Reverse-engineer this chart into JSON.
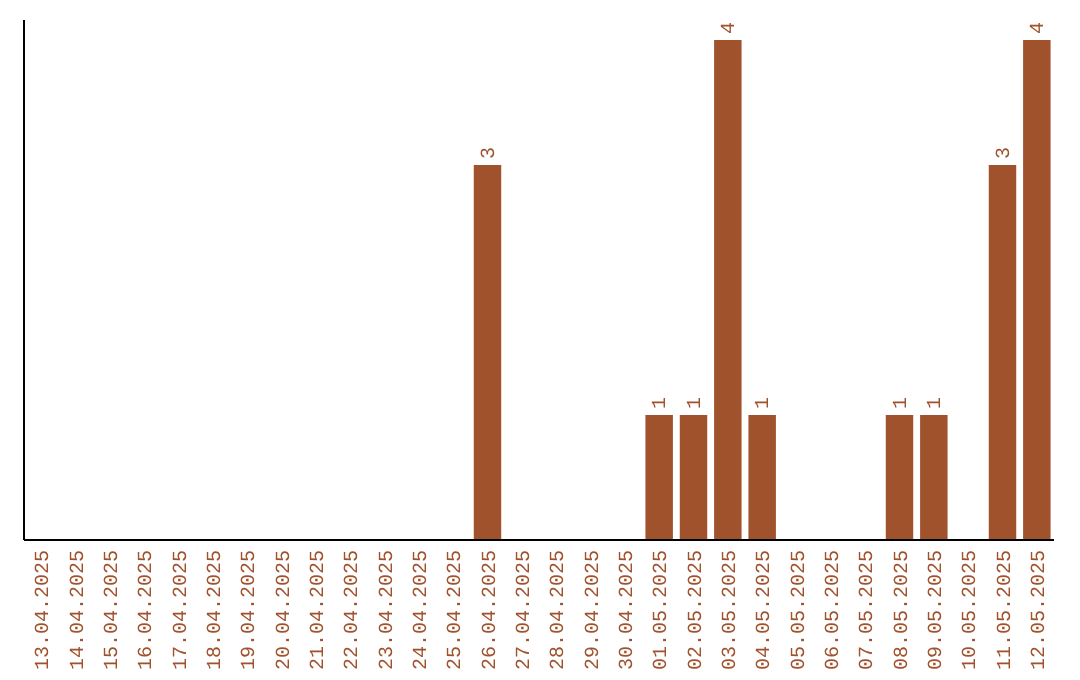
{
  "chart_data": {
    "type": "bar",
    "categories": [
      "13.04.2025",
      "14.04.2025",
      "15.04.2025",
      "16.04.2025",
      "17.04.2025",
      "18.04.2025",
      "19.04.2025",
      "20.04.2025",
      "21.04.2025",
      "22.04.2025",
      "23.04.2025",
      "24.04.2025",
      "25.04.2025",
      "26.04.2025",
      "27.04.2025",
      "28.04.2025",
      "29.04.2025",
      "30.04.2025",
      "01.05.2025",
      "02.05.2025",
      "03.05.2025",
      "04.05.2025",
      "05.05.2025",
      "06.05.2025",
      "07.05.2025",
      "08.05.2025",
      "09.05.2025",
      "10.05.2025",
      "11.05.2025",
      "12.05.2025"
    ],
    "values": [
      null,
      null,
      null,
      null,
      null,
      null,
      null,
      null,
      null,
      null,
      null,
      null,
      null,
      3,
      null,
      null,
      null,
      null,
      1,
      1,
      4,
      1,
      null,
      null,
      null,
      1,
      1,
      null,
      3,
      4
    ],
    "value_labels": [
      null,
      null,
      null,
      null,
      null,
      null,
      null,
      null,
      null,
      null,
      null,
      null,
      null,
      "3",
      null,
      null,
      null,
      null,
      "1",
      "1",
      "4",
      "1",
      null,
      null,
      null,
      "1",
      "1",
      null,
      "3",
      "4"
    ],
    "color": "#a0522d",
    "ylim": [
      0,
      4
    ],
    "tick_labels": "x"
  }
}
